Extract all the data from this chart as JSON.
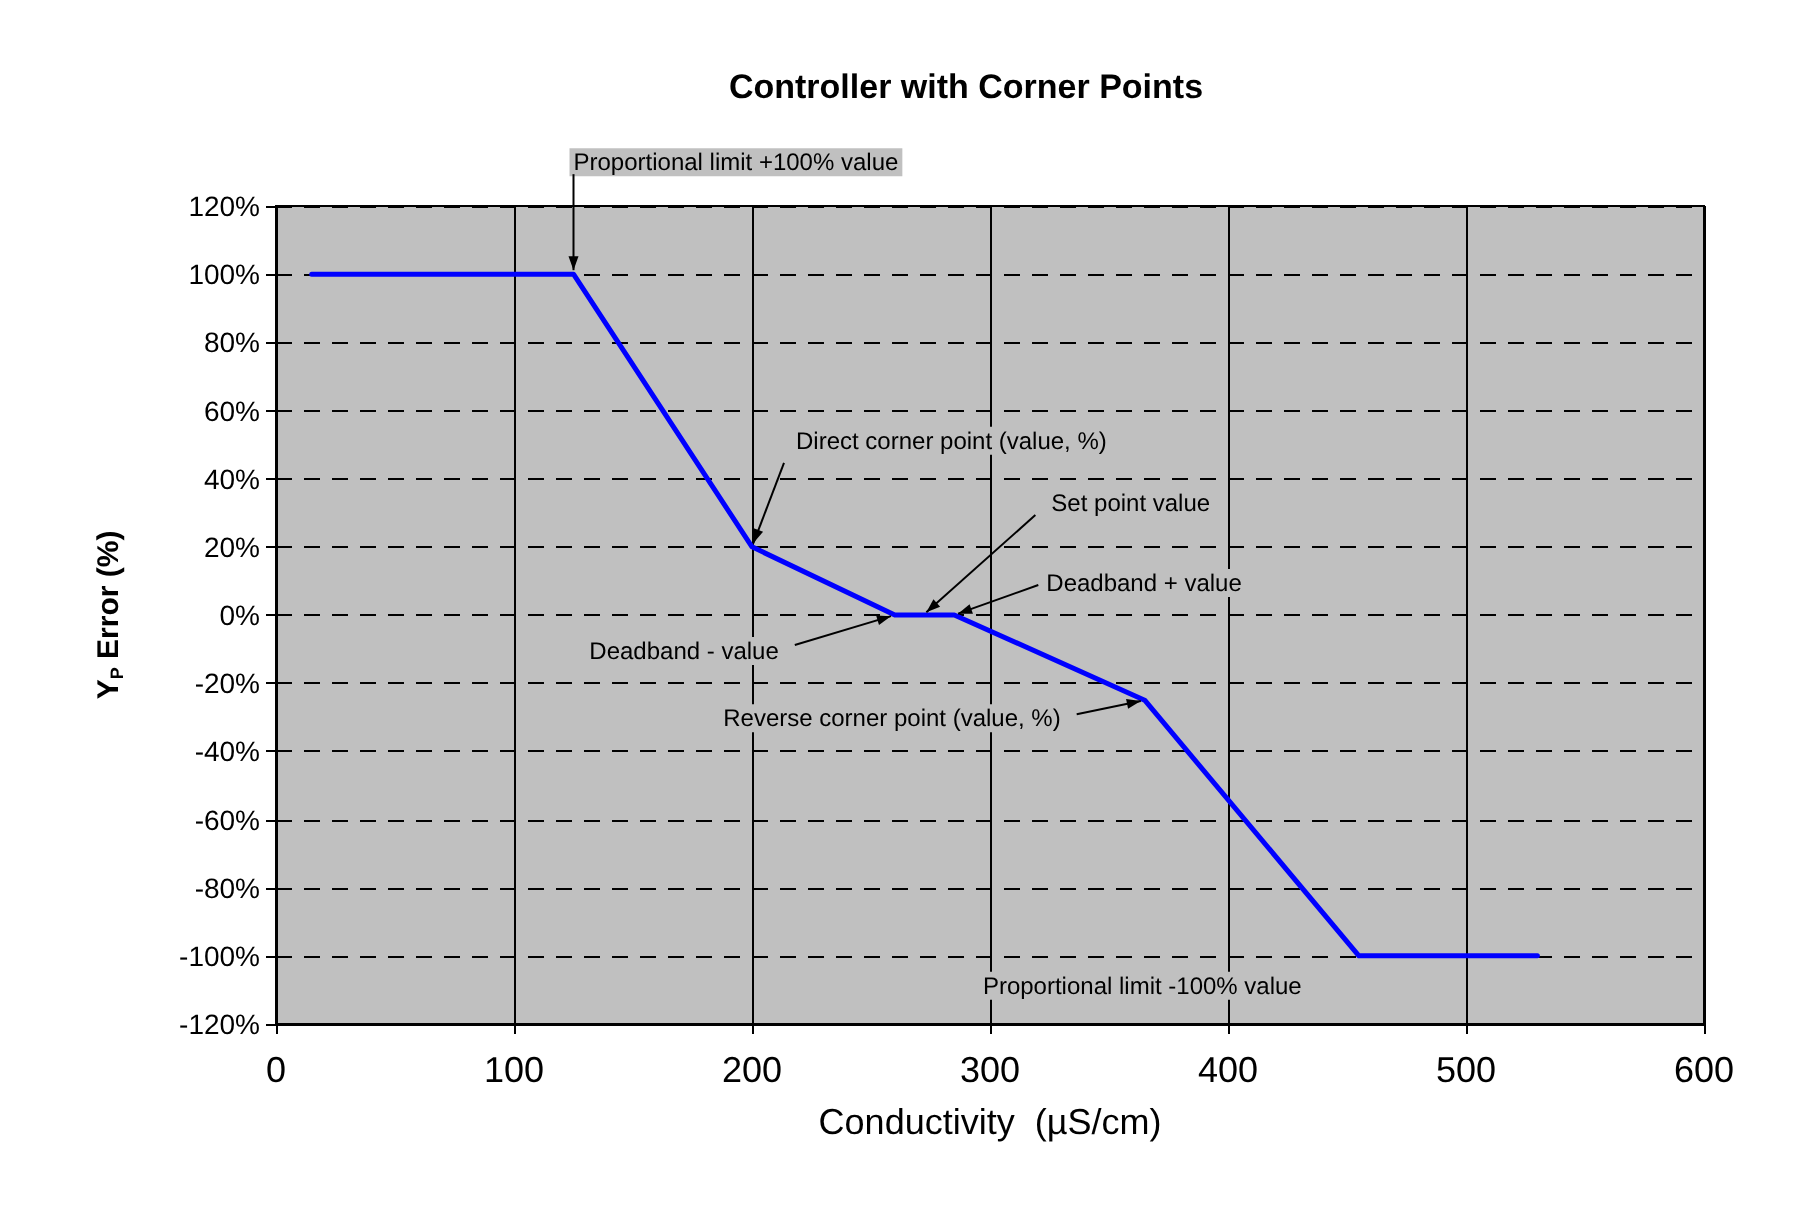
{
  "chart_data": {
    "type": "line",
    "title": "Controller with Corner Points",
    "xlabel": "Conductivity  (µS/cm)",
    "ylabel": "Y$_{P}$ Error (%)",
    "x": [
      15,
      125,
      200,
      260,
      285,
      365,
      455,
      530
    ],
    "series": [
      {
        "color": "#0000ff",
        "values": [
          100,
          100,
          20,
          0,
          0,
          -25,
          -100,
          -100
        ]
      }
    ],
    "xlim": [
      0,
      600
    ],
    "xticks": [
      0,
      100,
      200,
      300,
      400,
      500,
      600
    ],
    "ylim": [
      -120,
      120
    ],
    "yticks": [
      {
        "value": -120,
        "label": "-120%"
      },
      {
        "value": -100,
        "label": "-100%"
      },
      {
        "value": -80,
        "label": "-80%"
      },
      {
        "value": -60,
        "label": "-60%"
      },
      {
        "value": -40,
        "label": "-40%"
      },
      {
        "value": -20,
        "label": "-20%"
      },
      {
        "value": 0,
        "label": "0%"
      },
      {
        "value": 20,
        "label": "20%"
      },
      {
        "value": 40,
        "label": "40%"
      },
      {
        "value": 60,
        "label": "60%"
      },
      {
        "value": 80,
        "label": "80%"
      },
      {
        "value": 100,
        "label": "100%"
      },
      {
        "value": 120,
        "label": "120%"
      }
    ],
    "grid": true,
    "marker": "none",
    "line_style": "solid",
    "annotations": [
      {
        "text": "Proportional limit +100% value",
        "x": 125,
        "y": 100
      },
      {
        "text": "Direct corner point (value, %)",
        "x": 200,
        "y": 20
      },
      {
        "text": "Set point value",
        "x": 272,
        "y": 0
      },
      {
        "text": "Deadband + value",
        "x": 285,
        "y": 0
      },
      {
        "text": "Deadband - value",
        "x": 260,
        "y": 0
      },
      {
        "text": "Reverse corner point (value, %)",
        "x": 365,
        "y": -25
      },
      {
        "text": "Proportional limit -100% value",
        "x": 455,
        "y": -100
      }
    ]
  }
}
